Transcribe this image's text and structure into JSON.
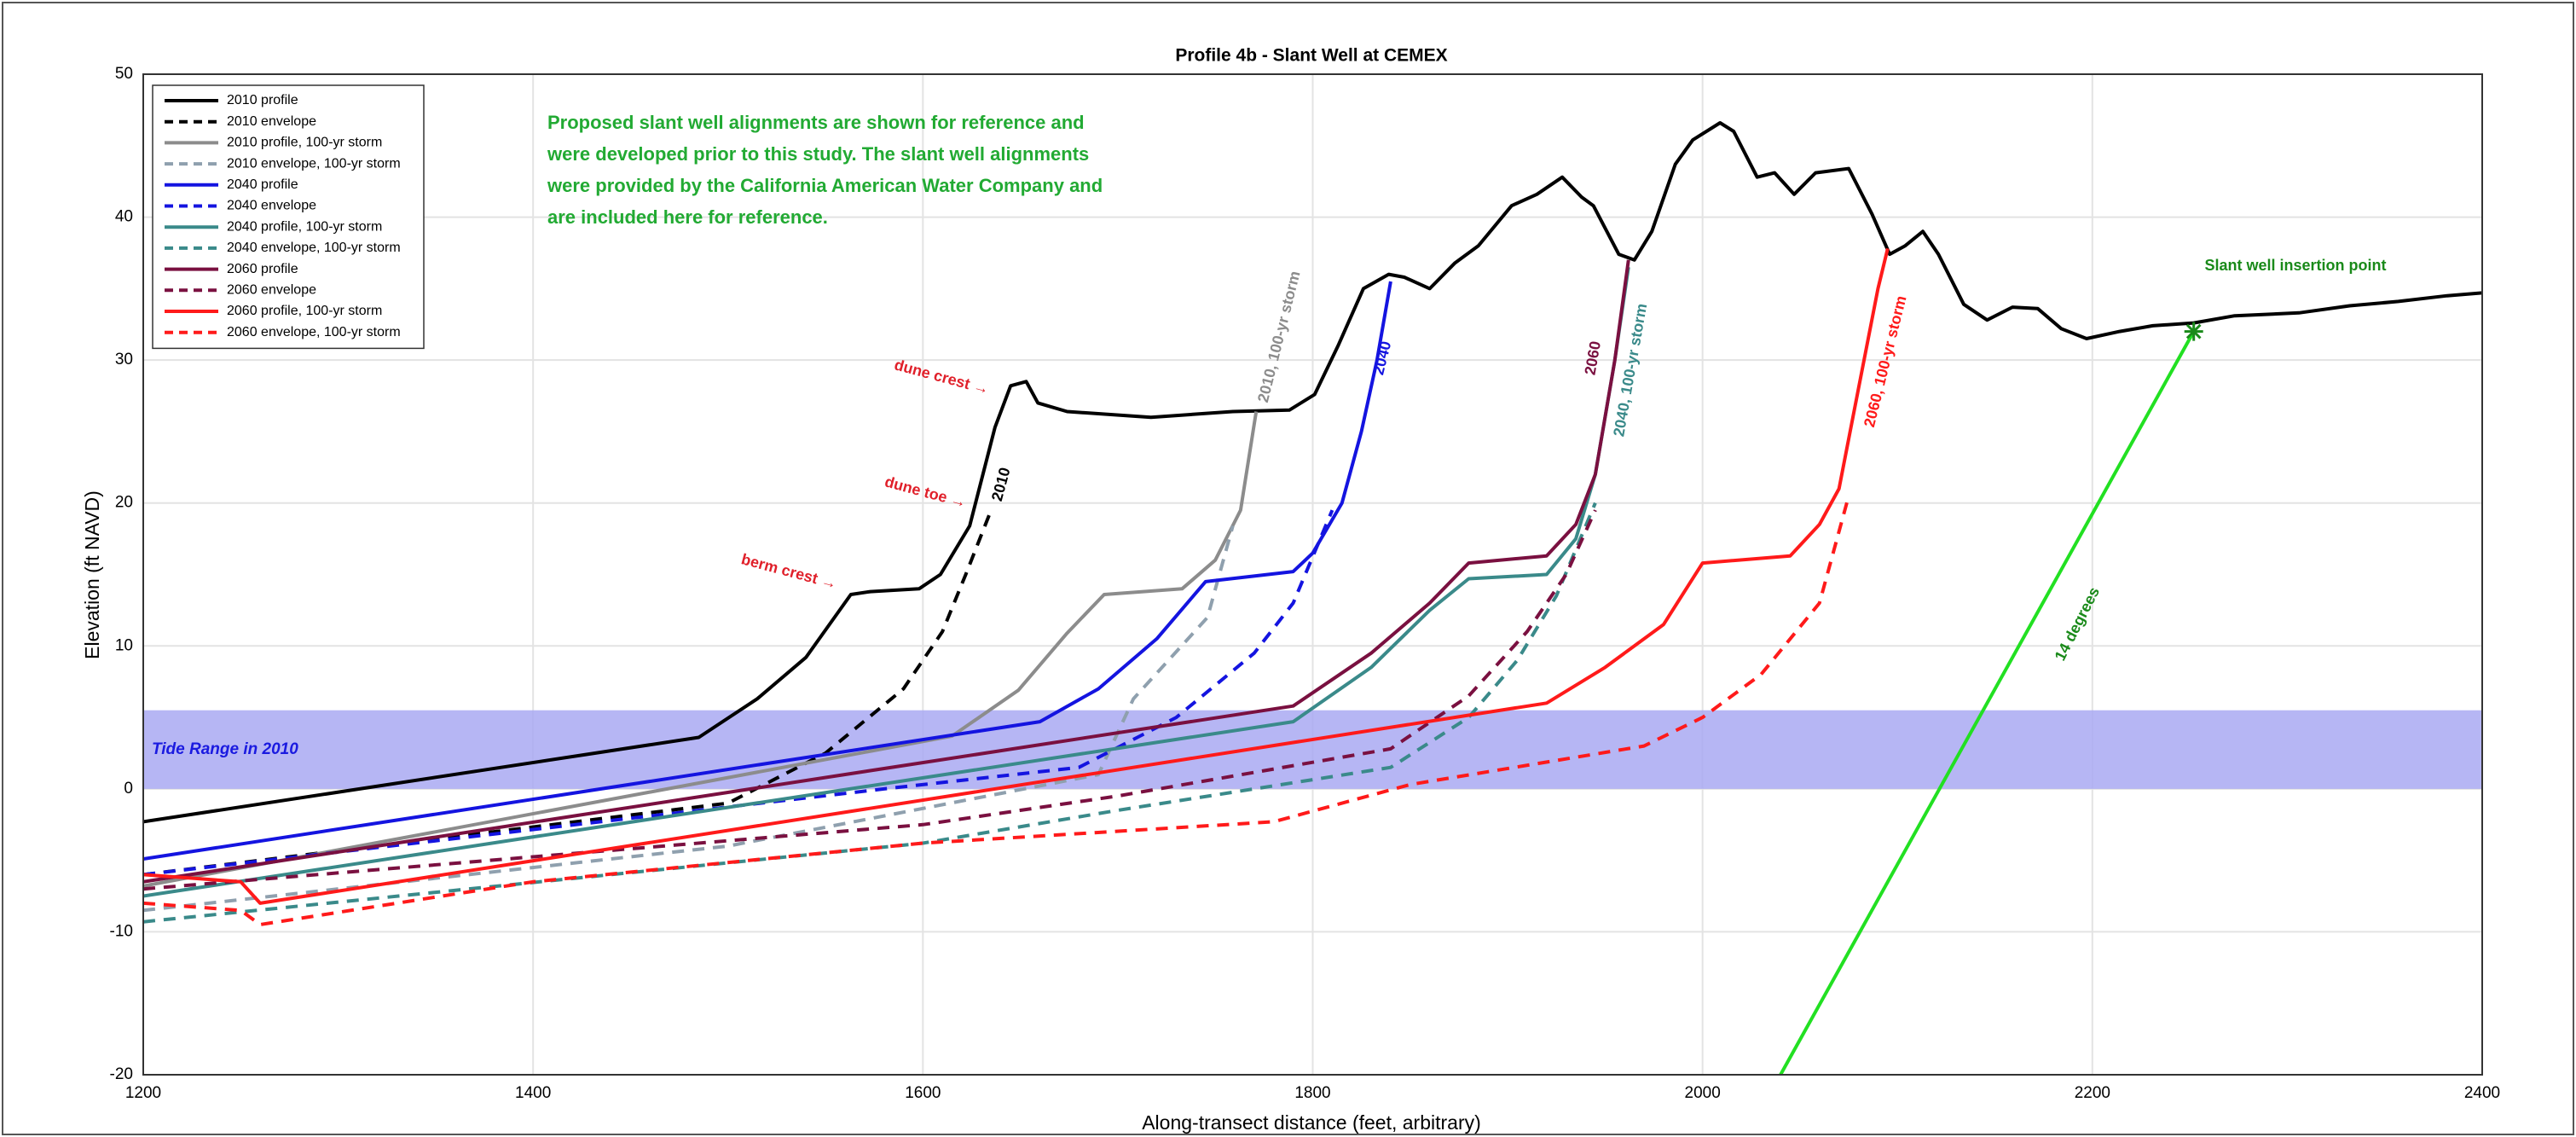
{
  "chart_data": {
    "type": "line",
    "title": "Profile 4b - Slant Well at CEMEX",
    "xlabel": "Along-transect distance (feet, arbitrary)",
    "ylabel": "Elevation (ft NAVD)",
    "xlim": [
      1200,
      2400
    ],
    "xticks": [
      1200,
      1400,
      1600,
      1800,
      2000,
      2200,
      2400
    ],
    "ylim": [
      -20,
      50
    ],
    "yticks": [
      -20,
      -10,
      0,
      10,
      20,
      30,
      40,
      50
    ],
    "grid": true,
    "legend": "upper left",
    "series": [
      {
        "name": "2010 profile",
        "color": "#000000",
        "dashed": false,
        "x": [
          1200,
          1485,
          1515,
          1540,
          1563,
          1573,
          1598,
          1609,
          1624,
          1637,
          1645,
          1653,
          1659,
          1674,
          1717,
          1759,
          1788,
          1801,
          1813,
          1826,
          1839,
          1847,
          1860,
          1873,
          1885,
          1902,
          1915,
          1928,
          1938,
          1944,
          1957,
          1965,
          1974,
          1986,
          1995,
          2009,
          2016,
          2028,
          2037,
          2047,
          2058,
          2075,
          2087,
          2096,
          2104,
          2113,
          2121,
          2134,
          2146,
          2159,
          2172,
          2184,
          2197,
          2214,
          2231,
          2252,
          2273,
          2306,
          2332,
          2357,
          2382,
          2400
        ],
        "values": [
          -2.3,
          3.6,
          6.3,
          9.2,
          13.6,
          13.8,
          14,
          15,
          18.4,
          25.3,
          28.2,
          28.5,
          27,
          26.4,
          26,
          26.4,
          26.5,
          27.6,
          31,
          35,
          36,
          35.8,
          35,
          36.8,
          38,
          40.8,
          41.6,
          42.8,
          41.4,
          40.8,
          37.4,
          37,
          39,
          43.7,
          45.4,
          46.6,
          46,
          42.8,
          43.1,
          41.6,
          43.1,
          43.4,
          40.2,
          37.4,
          38,
          39,
          37.4,
          33.9,
          32.8,
          33.7,
          33.6,
          32.2,
          31.5,
          32,
          32.4,
          32.6,
          33.1,
          33.3,
          33.8,
          34.1,
          34.5,
          34.7
        ]
      },
      {
        "name": "2010 envelope",
        "color": "#000000",
        "dashed": true,
        "x": [
          1200,
          1500,
          1550,
          1590,
          1610,
          1622,
          1635
        ],
        "values": [
          -6,
          -1,
          2.5,
          7,
          11,
          15,
          19.5
        ]
      },
      {
        "name": "2010 profile, 100-yr storm",
        "color": "#8c8c8c",
        "dashed": false,
        "x": [
          1200,
          1615,
          1649,
          1674,
          1693,
          1733,
          1750,
          1763,
          1771
        ],
        "values": [
          -6.8,
          3.7,
          6.9,
          10.9,
          13.6,
          14,
          16,
          19.5,
          26.4
        ]
      },
      {
        "name": "2010 envelope, 100-yr storm",
        "color": "#8fa0ae",
        "dashed": true,
        "x": [
          1200,
          1500,
          1690,
          1708,
          1746,
          1759
        ],
        "values": [
          -8.5,
          -4,
          1,
          6.3,
          12,
          18.4
        ]
      },
      {
        "name": "2040 profile",
        "color": "#1414e0",
        "dashed": false,
        "x": [
          1200,
          1660,
          1690,
          1720,
          1745,
          1790,
          1800,
          1815,
          1825,
          1833,
          1840
        ],
        "values": [
          -4.9,
          4.7,
          7,
          10.5,
          14.5,
          15.2,
          16.5,
          20,
          25,
          30,
          35.5
        ]
      },
      {
        "name": "2040 envelope",
        "color": "#1414e0",
        "dashed": true,
        "x": [
          1200,
          1580,
          1680,
          1730,
          1770,
          1790,
          1810
        ],
        "values": [
          -6,
          0,
          1.5,
          5,
          9.5,
          13,
          19.5
        ]
      },
      {
        "name": "2040 profile, 100-yr storm",
        "color": "#3a8a8a",
        "dashed": false,
        "x": [
          1200,
          1790,
          1830,
          1860,
          1880,
          1920,
          1935,
          1945,
          1955,
          1962
        ],
        "values": [
          -7.5,
          4.7,
          8.5,
          12.5,
          14.7,
          15,
          17.5,
          22,
          30,
          36.5
        ]
      },
      {
        "name": "2040 envelope, 100-yr storm",
        "color": "#3a8a8a",
        "dashed": true,
        "x": [
          1200,
          1600,
          1700,
          1840,
          1880,
          1905,
          1925,
          1945
        ],
        "values": [
          -9.3,
          -3.8,
          -1.5,
          1.5,
          5,
          9,
          13.5,
          20
        ]
      },
      {
        "name": "2060 profile",
        "color": "#7a1040",
        "dashed": false,
        "x": [
          1200,
          1790,
          1830,
          1860,
          1880,
          1920,
          1935,
          1945,
          1955,
          1962
        ],
        "values": [
          -6.5,
          5.8,
          9.5,
          13,
          15.8,
          16.3,
          18.5,
          22,
          30,
          37
        ]
      },
      {
        "name": "2060 envelope",
        "color": "#7a1040",
        "dashed": true,
        "x": [
          1200,
          1600,
          1700,
          1840,
          1880,
          1910,
          1930,
          1945
        ],
        "values": [
          -7,
          -2.5,
          -0.5,
          2.8,
          6.5,
          11,
          15,
          19.5
        ]
      },
      {
        "name": "2060 profile, 100-yr storm",
        "color": "#ff1a1a",
        "dashed": false,
        "x": [
          1200,
          1250,
          1260,
          1920,
          1950,
          1980,
          2000,
          2045,
          2060,
          2070,
          2080,
          2090,
          2095
        ],
        "values": [
          -6,
          -6.5,
          -8,
          6,
          8.5,
          11.5,
          15.8,
          16.3,
          18.5,
          21,
          28,
          35,
          37.8
        ]
      },
      {
        "name": "2060 envelope, 100-yr storm",
        "color": "#ff1a1a",
        "dashed": true,
        "x": [
          1200,
          1250,
          1260,
          1400,
          1600,
          1780,
          1850,
          1970,
          2000,
          2030,
          2060,
          2075
        ],
        "values": [
          -8,
          -8.5,
          -9.5,
          -6.5,
          -3.8,
          -2.3,
          0.3,
          3,
          5,
          8,
          13,
          20.5
        ]
      }
    ],
    "slant_well": {
      "color": "#22e022",
      "marker_color": "#1a8a1a",
      "x": [
        2040,
        2252
      ],
      "values": [
        -20,
        32
      ]
    },
    "band": {
      "label": "Tide Range in 2010",
      "color": "#a9a9f2",
      "label_color": "#1a1ae0",
      "ylim": [
        0,
        5.5
      ]
    },
    "note": {
      "color": "#22aa33",
      "lines": [
        "Proposed slant well alignments are shown for reference and",
        "were developed prior to this study. The slant well alignments",
        "were provided by the California American Water Company and",
        "are included here for reference."
      ]
    },
    "annotations": [
      {
        "text": "dune crest →",
        "color": "#e0202a"
      },
      {
        "text": "dune toe →",
        "color": "#e0202a"
      },
      {
        "text": "berm crest →",
        "color": "#e0202a"
      },
      {
        "text": "2010",
        "color": "#000000"
      },
      {
        "text": "2010, 100-yr storm",
        "color": "#8c8c8c"
      },
      {
        "text": "2040",
        "color": "#1414e0"
      },
      {
        "text": "2060",
        "color": "#7a1040"
      },
      {
        "text": "2040, 100-yr storm",
        "color": "#3a8a8a"
      },
      {
        "text": "2060, 100-yr storm",
        "color": "#ff1a1a"
      },
      {
        "text": "14 degrees",
        "color": "#1a8a1a"
      },
      {
        "text": "Slant well insertion point",
        "color": "#1a8a1a"
      }
    ]
  }
}
